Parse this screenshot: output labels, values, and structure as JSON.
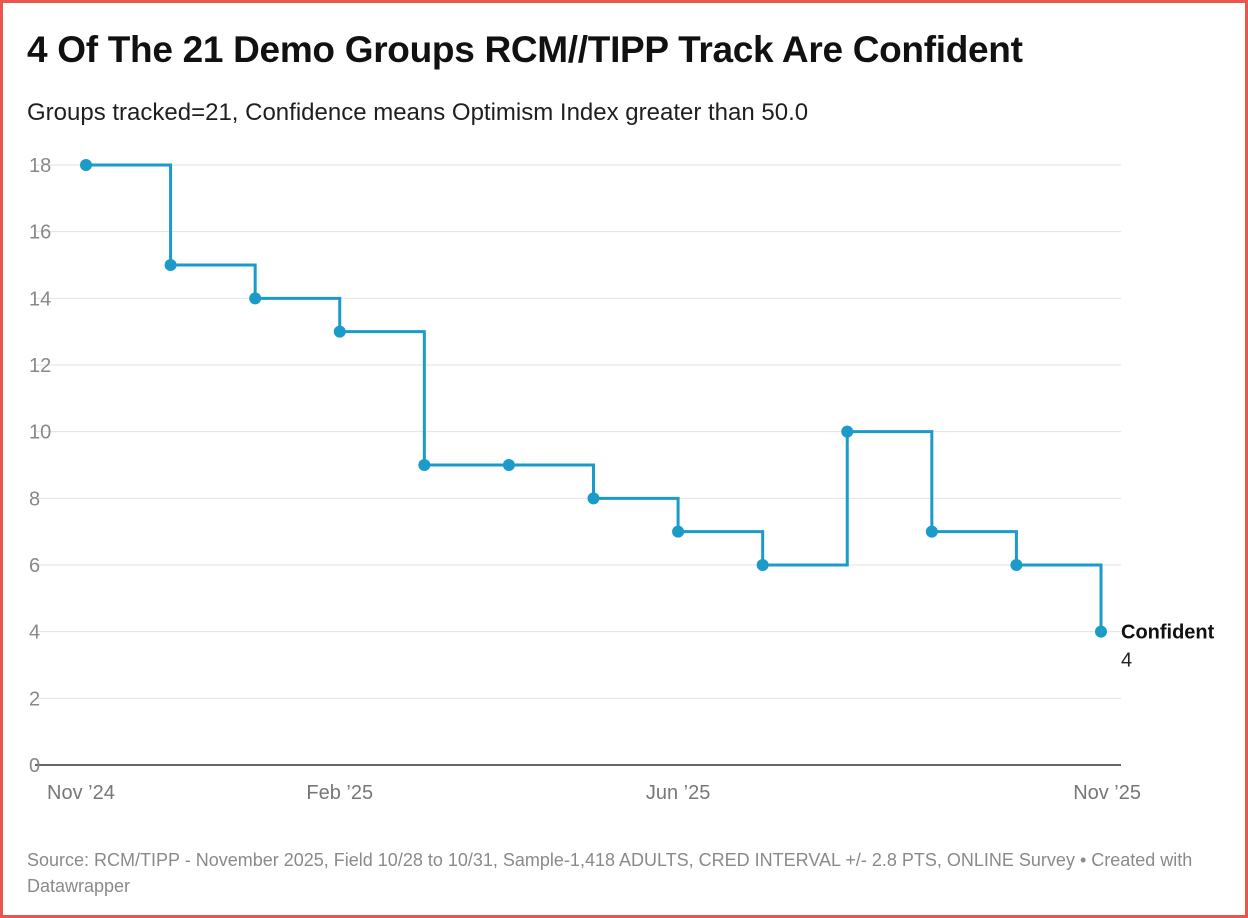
{
  "header": {
    "title": "4 Of The 21 Demo Groups RCM//TIPP Track Are Confident",
    "subtitle": "Groups tracked=21, Confidence means Optimism Index greater than 50.0"
  },
  "chart_data": {
    "type": "line",
    "step": "after",
    "x": [
      "Nov '24",
      "Dec '24",
      "Jan '25",
      "Feb '25",
      "Mar '25",
      "Apr '25",
      "May '25",
      "Jun '25",
      "Jul '25",
      "Aug '25",
      "Sep '25",
      "Oct '25",
      "Nov '25"
    ],
    "series": [
      {
        "name": "Confident",
        "values": [
          18,
          15,
          14,
          13,
          9,
          9,
          8,
          7,
          6,
          10,
          7,
          6,
          4
        ]
      }
    ],
    "x_tick_labels": [
      {
        "index": 0,
        "label": "Nov ’24"
      },
      {
        "index": 3,
        "label": "Feb ’25"
      },
      {
        "index": 7,
        "label": "Jun ’25"
      },
      {
        "index": 12,
        "label": "Nov ’25"
      }
    ],
    "y_ticks": [
      0,
      2,
      4,
      6,
      8,
      10,
      12,
      14,
      16,
      18
    ],
    "ylim": [
      0,
      18
    ],
    "grid": true,
    "end_label": {
      "name": "Confident",
      "value": "4"
    },
    "color": "#1a9bc9"
  },
  "footer": {
    "source": "Source: RCM/TIPP - November 2025, Field 10/28 to 10/31, Sample-1,418 ADULTS, CRED INTERVAL +/- 2.8 PTS, ONLINE Survey • Created with Datawrapper"
  }
}
